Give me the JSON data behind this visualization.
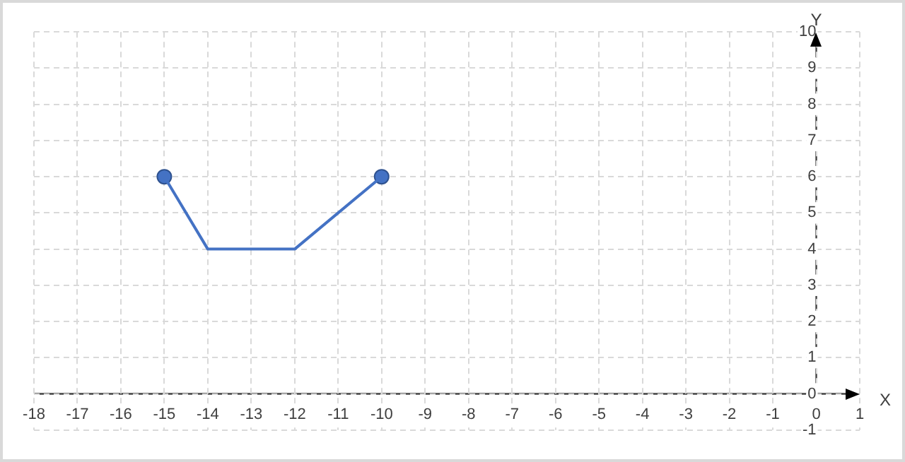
{
  "chart_data": {
    "type": "line",
    "xlabel": "X",
    "ylabel": "Y",
    "xlim": [
      -18,
      1
    ],
    "xticks": [
      -18,
      -17,
      -16,
      -15,
      -14,
      -13,
      -12,
      -11,
      -10,
      -9,
      -8,
      -7,
      -6,
      -5,
      -4,
      -3,
      -2,
      -1,
      0,
      1
    ],
    "ylim": [
      -1,
      10
    ],
    "yticks": [
      -1,
      0,
      1,
      2,
      3,
      4,
      5,
      6,
      7,
      8,
      9,
      10
    ],
    "grid": true,
    "legend": false,
    "series": [
      {
        "type": "line",
        "color": "#4472c4",
        "x": [
          -15,
          -14,
          -12,
          -10
        ],
        "values": [
          6,
          4,
          4,
          6
        ],
        "marker": "none"
      },
      {
        "type": "scatter",
        "color": "#4472c4",
        "x": [
          -15,
          -10
        ],
        "values": [
          6,
          6
        ],
        "marker": "circle"
      }
    ]
  }
}
